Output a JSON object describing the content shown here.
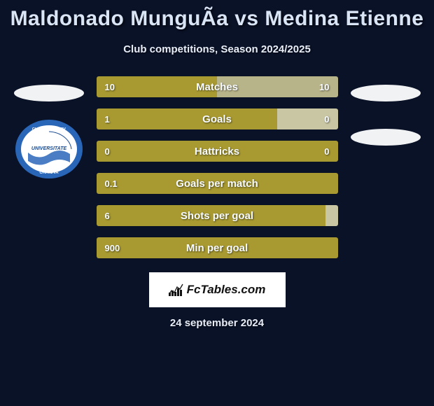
{
  "title": "Maldonado MunguÃa vs Medina Etienne",
  "subtitle": "Club competitions, Season 2024/2025",
  "date": "24 september 2024",
  "logo_text": "FcTables.com",
  "colors": {
    "background": "#0a1228",
    "bar_left": "#a89a31",
    "bar_right": "#b8b48a",
    "bar_right_light": "#c9c6a3",
    "text_light": "#f7fbff",
    "title": "#d9e4f5",
    "ellipse": "#f1f2f3"
  },
  "bars": [
    {
      "label": "Matches",
      "left_val": "10",
      "right_val": "10",
      "left_pct": 50,
      "right_pct": 50,
      "right_color": "#b8b48a"
    },
    {
      "label": "Goals",
      "left_val": "1",
      "right_val": "0",
      "left_pct": 75,
      "right_pct": 25,
      "right_color": "#c9c6a3"
    },
    {
      "label": "Hattricks",
      "left_val": "0",
      "right_val": "0",
      "left_pct": 100,
      "right_pct": 0,
      "right_color": "#b8b48a"
    },
    {
      "label": "Goals per match",
      "left_val": "0.1",
      "right_val": "",
      "left_pct": 100,
      "right_pct": 0,
      "right_color": "#b8b48a"
    },
    {
      "label": "Shots per goal",
      "left_val": "6",
      "right_val": "",
      "left_pct": 95,
      "right_pct": 5,
      "right_color": "#c9c6a3"
    },
    {
      "label": "Min per goal",
      "left_val": "900",
      "right_val": "",
      "left_pct": 100,
      "right_pct": 0,
      "right_color": "#b8b48a"
    }
  ],
  "club_badge": {
    "outer": "#2a66b8",
    "inner": "#ffffff",
    "accent": "#2a66b8",
    "top_text": "CLUBUL SPORTIV",
    "mid_text": "UNIVERSITATE",
    "bottom_text": "CRAIOVA"
  }
}
